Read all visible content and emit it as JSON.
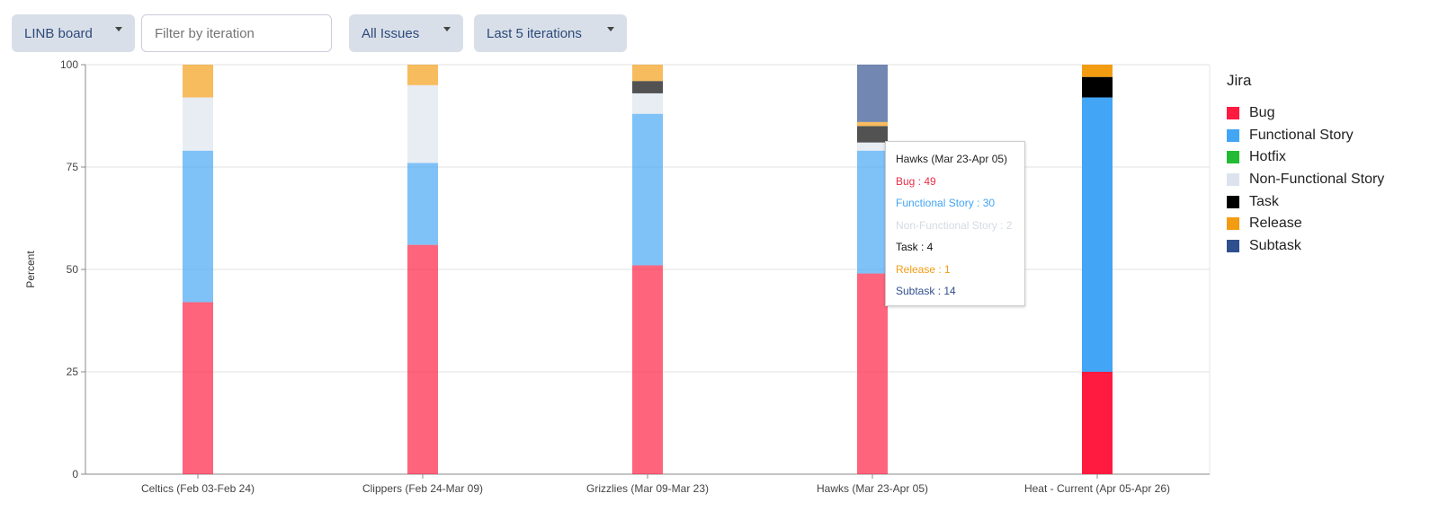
{
  "toolbar": {
    "board": "LINB board",
    "filter_placeholder": "Filter by iteration",
    "issues": "All Issues",
    "range": "Last 5 iterations"
  },
  "tooltip": {
    "title": "Hawks (Mar 23-Apr 05)",
    "lines": [
      "Bug : 49",
      "Functional Story : 30",
      "Non-Functional Story : 2",
      "Task : 4",
      "Release : 1",
      "Subtask : 14"
    ]
  },
  "chart_data": {
    "type": "bar",
    "stacked": true,
    "ylabel": "Percent",
    "xlabel": "",
    "ylim": [
      0,
      100
    ],
    "yticks": [
      0,
      25,
      50,
      75,
      100
    ],
    "grid": true,
    "legend_title": "Jira",
    "legend_placement": "right",
    "categories": [
      "Celtics (Feb 03-Feb 24)",
      "Clippers (Feb 24-Mar 09)",
      "Grizzlies (Mar 09-Mar 23)",
      "Hawks (Mar 23-Apr 05)",
      "Heat - Current (Apr 05-Apr 26)"
    ],
    "series": [
      {
        "name": "Bug",
        "color": "#ff1a40",
        "values": [
          42,
          56,
          51,
          49,
          25
        ]
      },
      {
        "name": "Functional Story",
        "color": "#42a5f5",
        "values": [
          37,
          20,
          37,
          30,
          67
        ]
      },
      {
        "name": "Hotfix",
        "color": "#22bb33",
        "values": [
          0,
          0,
          0,
          0,
          0
        ]
      },
      {
        "name": "Non-Functional Story",
        "color": "#dde3ee",
        "values": [
          13,
          19,
          5,
          2,
          0
        ]
      },
      {
        "name": "Task",
        "color": "#000000",
        "values": [
          0,
          0,
          3,
          4,
          5
        ]
      },
      {
        "name": "Release",
        "color": "#f39c12",
        "values": [
          8,
          5,
          4,
          1,
          3
        ]
      },
      {
        "name": "Subtask",
        "color": "#2f4f8f",
        "values": [
          0,
          0,
          0,
          14,
          0
        ]
      }
    ]
  }
}
